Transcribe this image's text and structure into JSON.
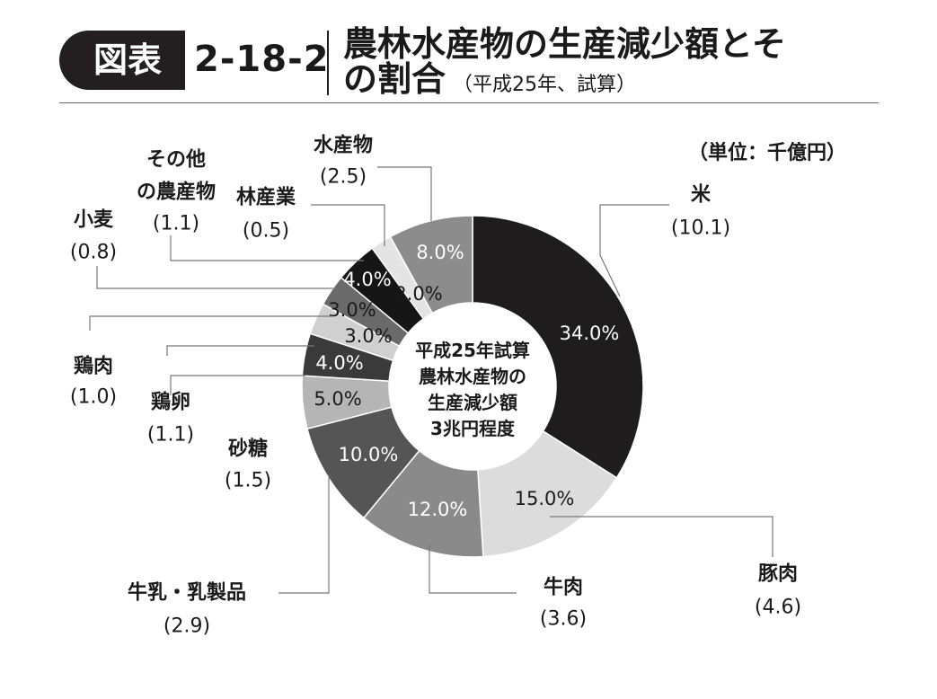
{
  "figure": {
    "badge": "図表",
    "number": "2-18-2",
    "title_line1": "農林水産物の生産減少額とそ",
    "title_line2": "の割合",
    "title_sub": "（平成25年、試算）",
    "unit": "（単位：千億円）"
  },
  "chart_data": {
    "type": "pie",
    "donut": true,
    "center_text": [
      "平成25年試算",
      "農林水産物の",
      "生産減少額",
      "3兆円程度"
    ],
    "slices": [
      {
        "name": "米",
        "value": "(10.1)",
        "amount": 10.1,
        "percent": 34.0,
        "percent_label": "34.0%",
        "color": "#1e1c1d",
        "text_color": "#ffffff"
      },
      {
        "name": "豚肉",
        "value": "(4.6)",
        "amount": 4.6,
        "percent": 15.0,
        "percent_label": "15.0%",
        "color": "#dcdcdc",
        "text_color": "#1a1a1a"
      },
      {
        "name": "牛肉",
        "value": "(3.6)",
        "amount": 3.6,
        "percent": 12.0,
        "percent_label": "12.0%",
        "color": "#8a8a8a",
        "text_color": "#ffffff"
      },
      {
        "name": "牛乳・乳製品",
        "value": "(2.9)",
        "amount": 2.9,
        "percent": 10.0,
        "percent_label": "10.0%",
        "color": "#555555",
        "text_color": "#ffffff"
      },
      {
        "name": "砂糖",
        "value": "(1.5)",
        "amount": 1.5,
        "percent": 5.0,
        "percent_label": "5.0%",
        "color": "#b5b5b5",
        "text_color": "#1a1a1a"
      },
      {
        "name": "鶏卵",
        "value": "(1.1)",
        "amount": 1.1,
        "percent": 4.0,
        "percent_label": "4.0%",
        "color": "#3a3a3a",
        "text_color": "#ffffff"
      },
      {
        "name": "鶏肉",
        "value": "(1.0)",
        "amount": 1.0,
        "percent": 3.0,
        "percent_label": "3.0%",
        "color": "#d0d0d0",
        "text_color": "#1a1a1a"
      },
      {
        "name": "小麦",
        "value": "(0.8)",
        "amount": 0.8,
        "percent": 3.0,
        "percent_label": "3.0%",
        "color": "#6a6a6a",
        "text_color": "#1a1a1a"
      },
      {
        "name": "その他の農産物",
        "value": "(1.1)",
        "amount": 1.1,
        "percent": 4.0,
        "percent_label": "4.0%",
        "color": "#161616",
        "text_color": "#ffffff"
      },
      {
        "name": "林産業",
        "value": "(0.5)",
        "amount": 0.5,
        "percent": 2.0,
        "percent_label": "2.0%",
        "color": "#e4e4e4",
        "text_color": "#1a1a1a"
      },
      {
        "name": "水産物",
        "value": "(2.5)",
        "amount": 2.5,
        "percent": 8.0,
        "percent_label": "8.0%",
        "color": "#8c8c8c",
        "text_color": "#ffffff"
      }
    ]
  }
}
